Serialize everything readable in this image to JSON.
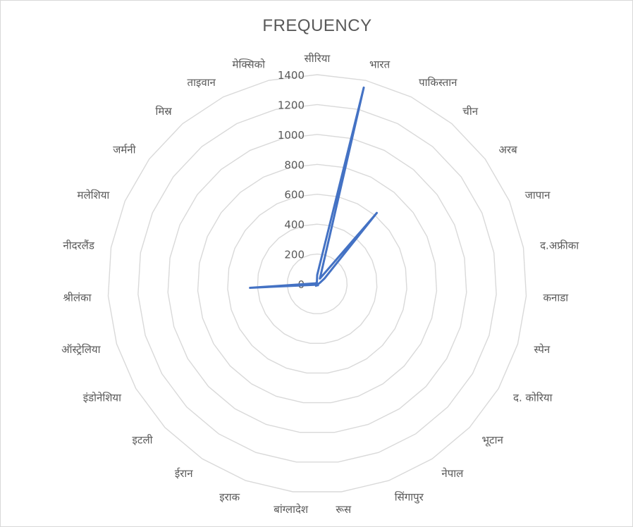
{
  "chart_data": {
    "type": "radar",
    "title": "FREQUENCY",
    "categories": [
      "सीरिया",
      "भारत",
      "पाकिस्तान",
      "चीन",
      "अरब",
      "जापान",
      "द.अफ्रीका",
      "कनाडा",
      "स्पेन",
      "द. कोरिया",
      "भूटान",
      "नेपाल",
      "सिंगापुर",
      "रूस",
      "बांग्लादेश",
      "इराक",
      "ईरान",
      "इटली",
      "इंडोनेशिया",
      "ऑस्ट्रेलिया",
      "श्रीलंका",
      "नीदरलैंड",
      "मलेशिया",
      "जर्मनी",
      "मिस्र",
      "ताइवान",
      "मेक्सिको"
    ],
    "values": [
      60,
      1350,
      40,
      620,
      60,
      20,
      10,
      5,
      5,
      5,
      5,
      10,
      10,
      5,
      5,
      10,
      15,
      5,
      5,
      20,
      450,
      20,
      10,
      10,
      5,
      10,
      10
    ],
    "axis": {
      "min": 0,
      "max": 1400,
      "step": 200,
      "tick_labels": [
        "0",
        "200",
        "400",
        "600",
        "800",
        "1000",
        "1200",
        "1400"
      ]
    },
    "grid": true,
    "legend": "none",
    "colors": {
      "series": "#4472c4",
      "grid": "#d9d9d9",
      "text": "#595959"
    }
  }
}
